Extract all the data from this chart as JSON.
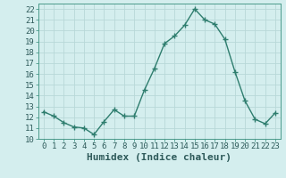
{
  "x": [
    0,
    1,
    2,
    3,
    4,
    5,
    6,
    7,
    8,
    9,
    10,
    11,
    12,
    13,
    14,
    15,
    16,
    17,
    18,
    19,
    20,
    21,
    22,
    23
  ],
  "y": [
    12.5,
    12.1,
    11.5,
    11.1,
    11.0,
    10.4,
    11.6,
    12.7,
    12.1,
    12.1,
    14.5,
    16.5,
    18.8,
    19.5,
    20.5,
    22.0,
    21.0,
    20.6,
    19.2,
    16.2,
    13.5,
    11.8,
    11.4,
    12.4
  ],
  "line_color": "#2e7d6e",
  "marker": "+",
  "marker_size": 4,
  "bg_color": "#d4eeee",
  "grid_color": "#b8d8d8",
  "xlabel": "Humidex (Indice chaleur)",
  "ylim": [
    10,
    22.5
  ],
  "xlim": [
    -0.5,
    23.5
  ],
  "yticks": [
    10,
    11,
    12,
    13,
    14,
    15,
    16,
    17,
    18,
    19,
    20,
    21,
    22
  ],
  "xticks": [
    0,
    1,
    2,
    3,
    4,
    5,
    6,
    7,
    8,
    9,
    10,
    11,
    12,
    13,
    14,
    15,
    16,
    17,
    18,
    19,
    20,
    21,
    22,
    23
  ],
  "tick_label_fontsize": 6.5,
  "xlabel_fontsize": 8,
  "line_width": 1.0,
  "marker_edge_width": 1.0
}
